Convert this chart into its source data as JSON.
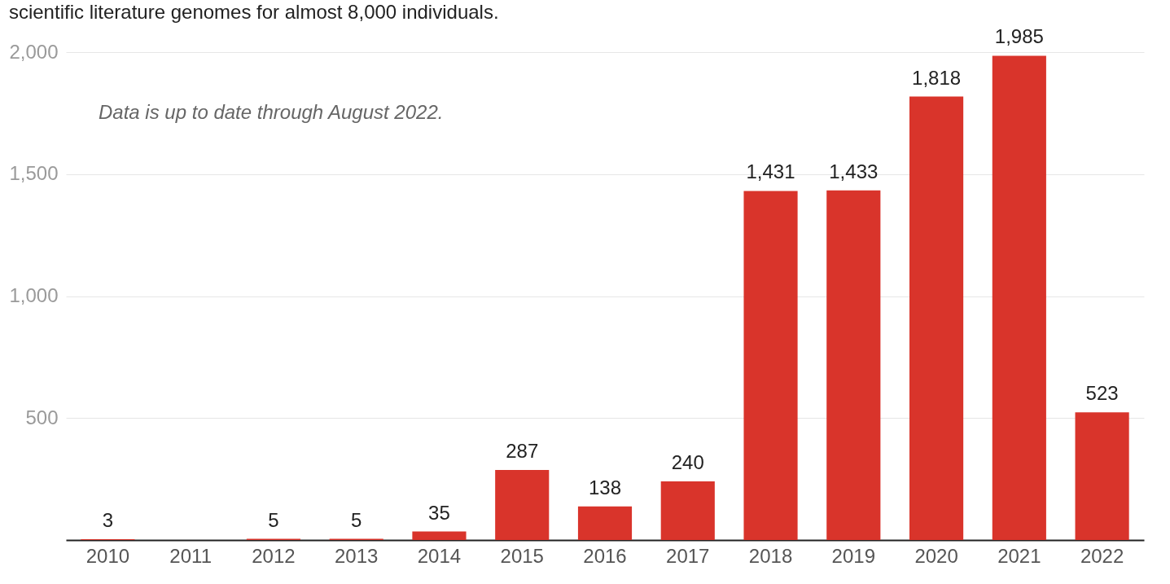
{
  "chart_data": {
    "type": "bar",
    "subtitle": "scientific literature genomes for almost 8,000 individuals.",
    "categories": [
      "2010",
      "2011",
      "2012",
      "2013",
      "2014",
      "2015",
      "2016",
      "2017",
      "2018",
      "2019",
      "2020",
      "2021",
      "2022"
    ],
    "values": [
      3,
      0,
      5,
      5,
      35,
      287,
      138,
      240,
      1431,
      1433,
      1818,
      1985,
      523
    ],
    "value_labels": [
      "3",
      null,
      "5",
      "5",
      "35",
      "287",
      "138",
      "240",
      "1,431",
      "1,433",
      "1,818",
      "1,985",
      "523"
    ],
    "color": "#d9342b",
    "ylim": [
      0,
      2000
    ],
    "yticks": [
      {
        "value": 0,
        "label": null
      },
      {
        "value": 500,
        "label": "500"
      },
      {
        "value": 1000,
        "label": "1,000"
      },
      {
        "value": 1500,
        "label": "1,500"
      },
      {
        "value": 2000,
        "label": "2,000"
      }
    ],
    "grid": "y",
    "annotations": [
      "Data is up to date through August 2022."
    ]
  }
}
